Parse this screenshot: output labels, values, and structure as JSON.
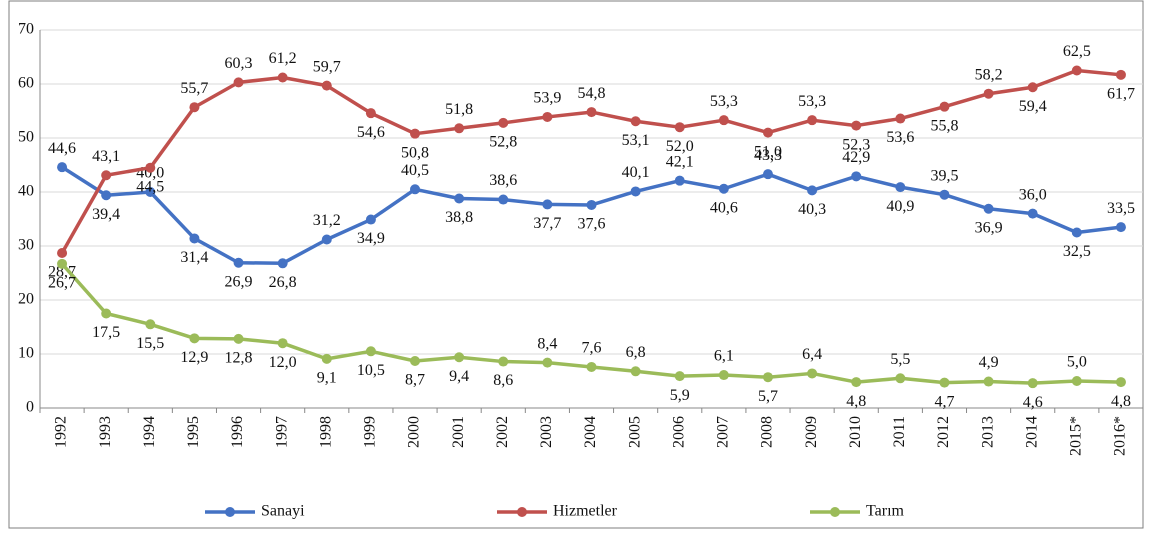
{
  "chart_data": {
    "type": "line",
    "categories": [
      "1992",
      "1993",
      "1994",
      "1995",
      "1996",
      "1997",
      "1998",
      "1999",
      "2000",
      "2001",
      "2002",
      "2003",
      "2004",
      "2005",
      "2006",
      "2007",
      "2008",
      "2009",
      "2010",
      "2011",
      "2012",
      "2013",
      "2014",
      "2015*",
      "2016*"
    ],
    "series": [
      {
        "name": "Sanayi",
        "color": "#4472c4",
        "values": [
          44.6,
          39.4,
          40.0,
          31.4,
          26.9,
          26.8,
          31.2,
          34.9,
          40.5,
          38.8,
          38.6,
          37.7,
          37.6,
          40.1,
          42.1,
          40.6,
          43.3,
          40.3,
          42.9,
          40.9,
          39.5,
          36.9,
          36.0,
          32.5,
          33.5
        ],
        "value_labels": [
          "44,6",
          "39,4",
          "40,0",
          "31,4",
          "26,9",
          "26,8",
          "31,2",
          "34,9",
          "40,5",
          "38,8",
          "38,6",
          "37,7",
          "37,6",
          "40,1",
          "42,1",
          "40,6",
          "43,3",
          "40,3",
          "42,9",
          "40,9",
          "39,5",
          "36,9",
          "36,0",
          "32,5",
          "33,5"
        ]
      },
      {
        "name": "Hizmetler",
        "color": "#c0504d",
        "values": [
          28.7,
          43.1,
          44.5,
          55.7,
          60.3,
          61.2,
          59.7,
          54.6,
          50.8,
          51.8,
          52.8,
          53.9,
          54.8,
          53.1,
          52.0,
          53.3,
          51.0,
          53.3,
          52.3,
          53.6,
          55.8,
          58.2,
          59.4,
          62.5,
          61.7
        ],
        "value_labels": [
          "28,7",
          "43,1",
          "44,5",
          "55,7",
          "60,3",
          "61,2",
          "59,7",
          "54,6",
          "50,8",
          "51,8",
          "52,8",
          "53,9",
          "54,8",
          "53,1",
          "52,0",
          "53,3",
          "51,0",
          "53,3",
          "52,3",
          "53,6",
          "55,8",
          "58,2",
          "59,4",
          "62,5",
          "61,7"
        ]
      },
      {
        "name": "Tarım",
        "color": "#9bbb59",
        "values": [
          26.7,
          17.5,
          15.5,
          12.9,
          12.8,
          12.0,
          9.1,
          10.5,
          8.7,
          9.4,
          8.6,
          8.4,
          7.6,
          6.8,
          5.9,
          6.1,
          5.7,
          6.4,
          4.8,
          5.5,
          4.7,
          4.9,
          4.6,
          5.0,
          4.8
        ],
        "value_labels": [
          "26,7",
          "17,5",
          "15,5",
          "12,9",
          "12,8",
          "12,0",
          "9,1",
          "10,5",
          "8,7",
          "9,4",
          "8,6",
          "8,4",
          "7,6",
          "6,8",
          "5,9",
          "6,1",
          "5,7",
          "6,4",
          "4,8",
          "5,5",
          "4,7",
          "4,9",
          "4,6",
          "5,0",
          "4,8"
        ]
      }
    ],
    "ylim": [
      0,
      70
    ],
    "yticks": [
      0,
      10,
      20,
      30,
      40,
      50,
      60,
      70
    ],
    "grid": true,
    "legend": "bottom"
  }
}
